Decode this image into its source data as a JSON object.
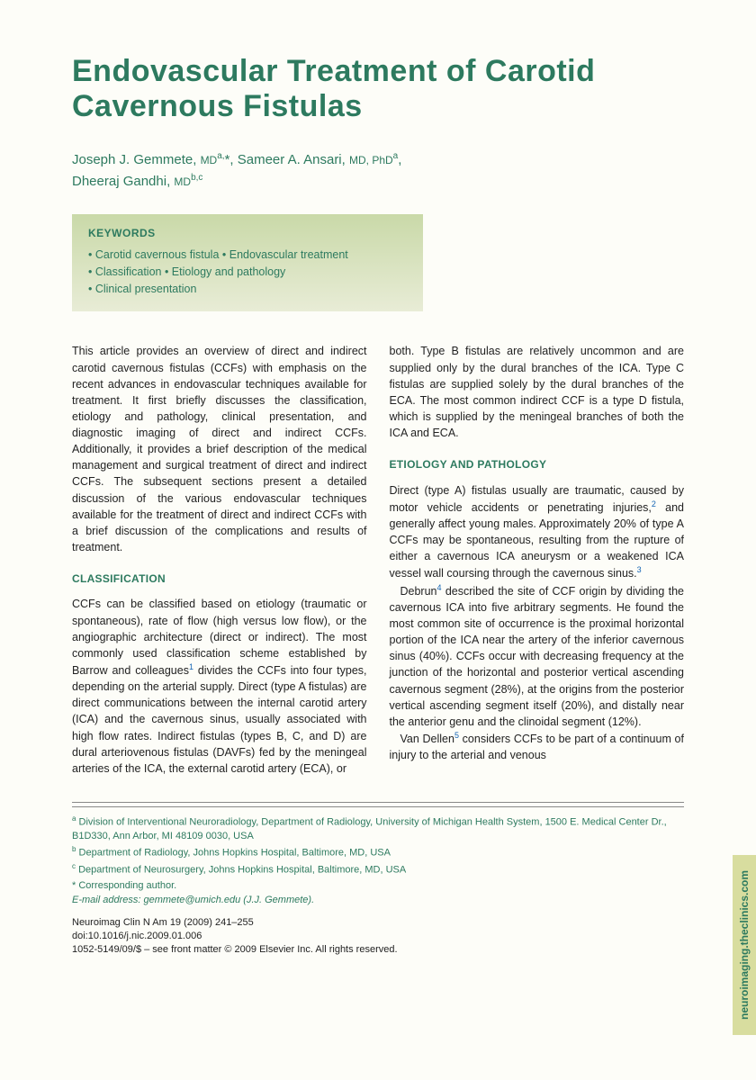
{
  "title": "Endovascular Treatment of Carotid Cavernous Fistulas",
  "authors_html": "Joseph J. Gemmete, <span class='deg'>MD</span><span class='sup'>a,</span>*, Sameer A. Ansari, <span class='deg'>MD, PhD</span><span class='sup'>a</span>,<br>Dheeraj Gandhi, <span class='deg'>MD</span><span class='sup'>b,c</span>",
  "keywords": {
    "header": "KEYWORDS",
    "lines": [
      "• Carotid cavernous fistula • Endovascular treatment",
      "• Classification • Etiology and pathology",
      "• Clinical presentation"
    ]
  },
  "left_col": {
    "intro": "This article provides an overview of direct and indirect carotid cavernous fistulas (CCFs) with emphasis on the recent advances in endovascular techniques available for treatment. It first briefly discusses the classification, etiology and pathology, clinical presentation, and diagnostic imaging of direct and indirect CCFs. Additionally, it provides a brief description of the medical management and surgical treatment of direct and indirect CCFs. The subsequent sections present a detailed discussion of the various endovascular techniques available for the treatment of direct and indirect CCFs with a brief discussion of the complications and results of treatment.",
    "sec1_head": "CLASSIFICATION",
    "sec1_body_html": "CCFs can be classified based on etiology (traumatic or spontaneous), rate of flow (high versus low flow), or the angiographic architecture (direct or indirect). The most commonly used classification scheme established by Barrow and colleagues<span class='ref'>1</span> divides the CCFs into four types, depending on the arterial supply. Direct (type A fistulas) are direct communications between the internal carotid artery (ICA) and the cavernous sinus, usually associated with high flow rates. Indirect fistulas (types B, C, and D) are dural arteriovenous fistulas (DAVFs) fed by the meningeal arteries of the ICA, the external carotid artery (ECA), or"
  },
  "right_col": {
    "cont": "both. Type B fistulas are relatively uncommon and are supplied only by the dural branches of the ICA. Type C fistulas are supplied solely by the dural branches of the ECA. The most common indirect CCF is a type D fistula, which is supplied by the meningeal branches of both the ICA and ECA.",
    "sec2_head": "ETIOLOGY AND PATHOLOGY",
    "p1_html": "Direct (type A) fistulas usually are traumatic, caused by motor vehicle accidents or penetrating injuries,<span class='ref'>2</span> and generally affect young males. Approximately 20% of type A CCFs may be spontaneous, resulting from the rupture of either a cavernous ICA aneurysm or a weakened ICA vessel wall coursing through the cavernous sinus.<span class='ref'>3</span>",
    "p2_html": "Debrun<span class='ref'>4</span> described the site of CCF origin by dividing the cavernous ICA into five arbitrary segments. He found the most common site of occurrence is the proximal horizontal portion of the ICA near the artery of the inferior cavernous sinus (40%). CCFs occur with decreasing frequency at the junction of the horizontal and posterior vertical ascending cavernous segment (28%), at the origins from the posterior vertical ascending segment itself (20%), and distally near the anterior genu and the clinoidal segment (12%).",
    "p3_html": "Van Dellen<span class='ref'>5</span> considers CCFs to be part of a continuum of injury to the arterial and venous"
  },
  "footnotes": {
    "a": "Division of Interventional Neuroradiology, Department of Radiology, University of Michigan Health System, 1500 E. Medical Center Dr., B1D330, Ann Arbor, MI 48109 0030, USA",
    "b": "Department of Radiology, Johns Hopkins Hospital, Baltimore, MD, USA",
    "c": "Department of Neurosurgery, Johns Hopkins Hospital, Baltimore, MD, USA",
    "corr": "* Corresponding author.",
    "email": "E-mail address: gemmete@umich.edu (J.J. Gemmete)."
  },
  "pubinfo": {
    "line1": "Neuroimag Clin N Am 19 (2009) 241–255",
    "line2": "doi:10.1016/j.nic.2009.01.006",
    "line3": "1052-5149/09/$ – see front matter © 2009 Elsevier Inc. All rights reserved."
  },
  "sidetab": "neuroimaging.theclinics.com",
  "colors": {
    "accent": "#2d7a5f",
    "box_top": "#c9d9a8",
    "box_bot": "#e8ecd6",
    "tab": "#d8dd9f",
    "link": "#1464b4"
  }
}
